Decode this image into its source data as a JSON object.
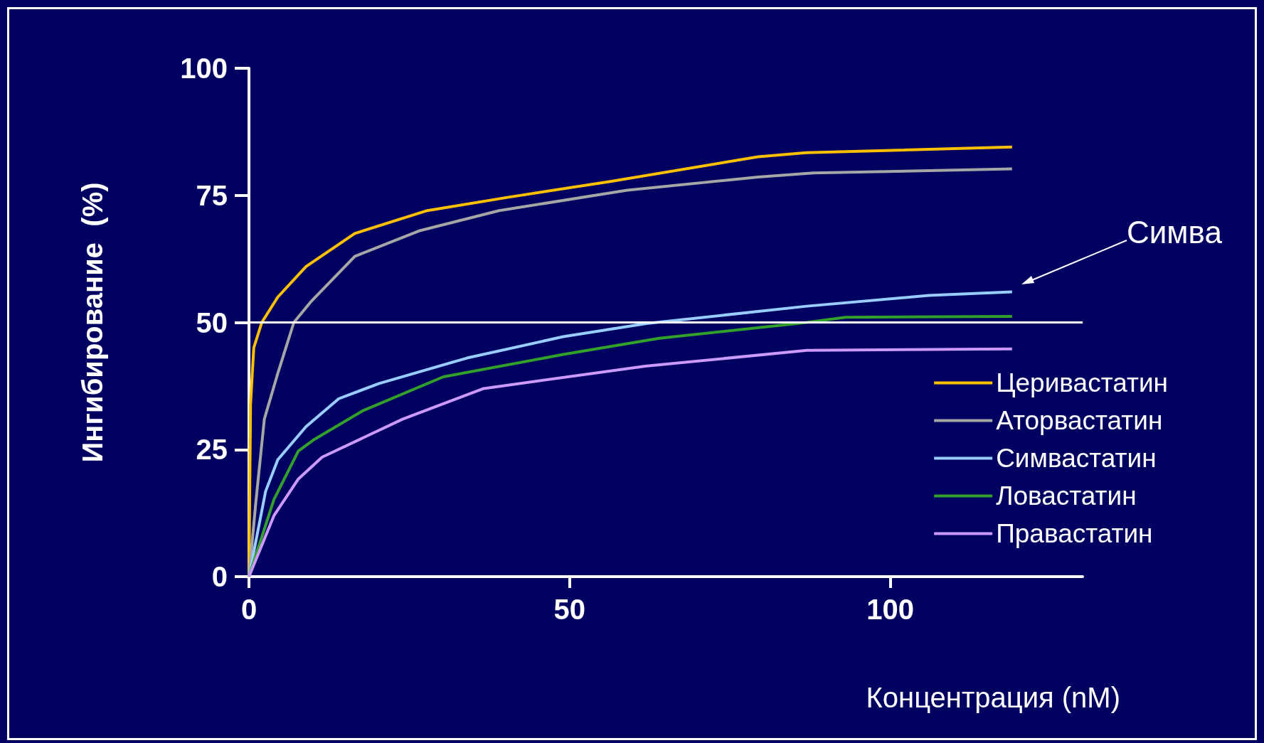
{
  "chart_data": {
    "type": "line",
    "xlabel": "Концентрация (nM)",
    "ylabel": "Ингибирование  (%)",
    "xlim": [
      0,
      130
    ],
    "xticks": [
      0,
      50,
      100
    ],
    "ylim": [
      0,
      100
    ],
    "yticks": [
      0,
      25,
      50,
      75,
      100
    ],
    "grid": false,
    "legend": "right",
    "marker": "none",
    "line_style": "solid",
    "ref_lines": [
      {
        "axis": "y",
        "value": 50,
        "color": "#ffffff"
      }
    ],
    "annotations": [
      "Симва"
    ],
    "series": [
      {
        "name": "Церивастатин",
        "color": "#ffc000",
        "x": [
          0,
          0.25,
          0.75,
          2,
          4.5,
          8.9,
          16.5,
          27.8,
          40.3,
          56.7,
          79.4,
          86.9,
          119
        ],
        "values": [
          0,
          34,
          45,
          50,
          55,
          61,
          67.5,
          72,
          74.6,
          77.8,
          82.6,
          83.4,
          84.5
        ]
      },
      {
        "name": "Аторвастатин",
        "color": "#a6a6a6",
        "x": [
          0,
          1.1,
          2.4,
          4.5,
          7,
          9.6,
          16.5,
          26.5,
          39,
          59,
          79.4,
          88,
          119
        ],
        "values": [
          0,
          15,
          31,
          40,
          50,
          54,
          63,
          68,
          72,
          76,
          78.6,
          79.4,
          80.2
        ]
      },
      {
        "name": "Симвастатин",
        "color": "#99ccff",
        "x": [
          0,
          2.6,
          4.5,
          8.9,
          14,
          20.3,
          34,
          49,
          62,
          87,
          106,
          119
        ],
        "values": [
          0,
          16.8,
          23,
          29.5,
          35,
          38,
          43,
          47.2,
          49.8,
          53.2,
          55.3,
          56
        ]
      },
      {
        "name": "Ловастатин",
        "color": "#33a02c",
        "x": [
          0,
          3.9,
          7.7,
          10.2,
          17.7,
          30.3,
          49,
          64,
          87,
          93,
          119
        ],
        "values": [
          0,
          15.2,
          24.7,
          27,
          32.6,
          39.3,
          43.7,
          46.9,
          50,
          51,
          51.2
        ]
      },
      {
        "name": "Правастатин",
        "color": "#cc99ff",
        "x": [
          0,
          3.9,
          7.7,
          11.4,
          24,
          36.6,
          61.8,
          87,
          119
        ],
        "values": [
          0,
          12,
          19.2,
          23.5,
          31,
          37,
          41.4,
          44.5,
          44.8
        ]
      }
    ]
  }
}
